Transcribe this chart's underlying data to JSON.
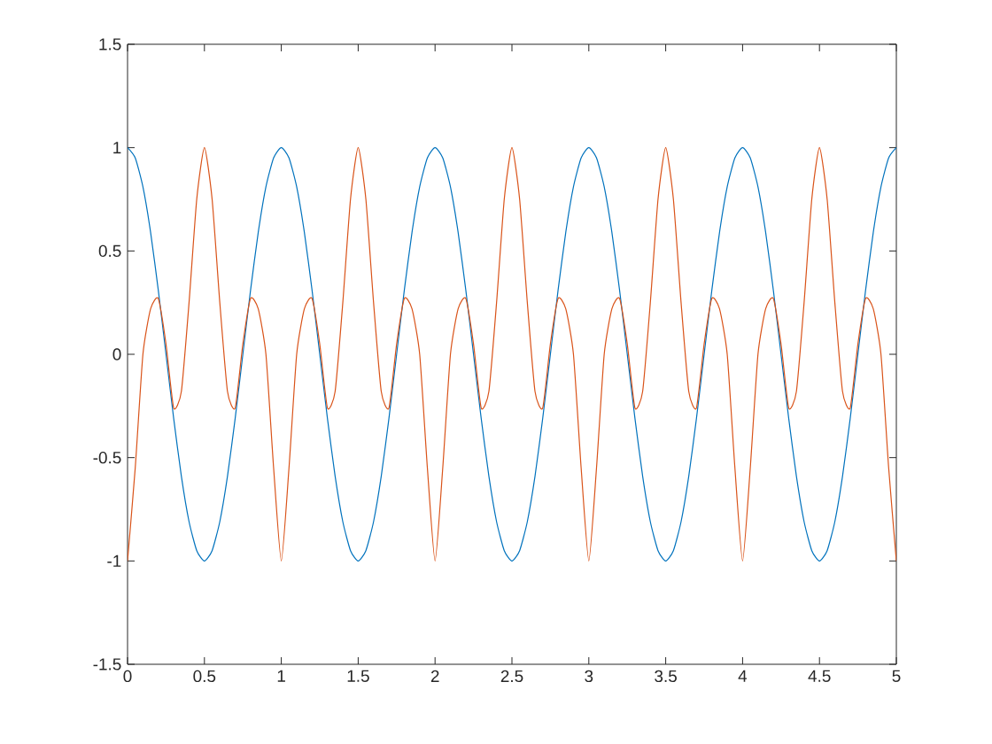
{
  "chart_data": {
    "type": "line",
    "x": [
      0,
      0.05,
      0.1,
      0.15,
      0.2,
      0.25,
      0.3,
      0.35,
      0.4,
      0.45,
      0.5,
      0.55,
      0.6,
      0.65,
      0.7,
      0.75,
      0.8,
      0.85,
      0.9,
      0.95,
      1,
      1.05,
      1.1,
      1.15,
      1.2,
      1.25,
      1.3,
      1.35,
      1.4,
      1.45,
      1.5,
      1.55,
      1.6,
      1.65,
      1.7,
      1.75,
      1.8,
      1.85,
      1.9,
      1.95,
      2,
      2.05,
      2.1,
      2.15,
      2.2,
      2.25,
      2.3,
      2.35,
      2.4,
      2.45,
      2.5,
      2.55,
      2.6,
      2.65,
      2.7,
      2.75,
      2.8,
      2.85,
      2.9,
      2.95,
      3,
      3.05,
      3.1,
      3.15,
      3.2,
      3.25,
      3.3,
      3.35,
      3.4,
      3.45,
      3.5,
      3.55,
      3.6,
      3.65,
      3.7,
      3.75,
      3.8,
      3.85,
      3.9,
      3.95,
      4,
      4.05,
      4.1,
      4.15,
      4.2,
      4.25,
      4.3,
      4.35,
      4.4,
      4.45,
      4.5,
      4.55,
      4.6,
      4.65,
      4.7,
      4.75,
      4.8,
      4.85,
      4.9,
      4.95,
      5
    ],
    "series": [
      {
        "color": "#0072bd",
        "values": [
          1,
          0.95,
          0.81,
          0.59,
          0.31,
          0,
          -0.31,
          -0.59,
          -0.81,
          -0.95,
          -1,
          -0.95,
          -0.81,
          -0.59,
          -0.31,
          0,
          0.31,
          0.59,
          0.81,
          0.95,
          1,
          0.95,
          0.81,
          0.59,
          0.31,
          0,
          -0.31,
          -0.59,
          -0.81,
          -0.95,
          -1,
          -0.95,
          -0.81,
          -0.59,
          -0.31,
          0,
          0.31,
          0.59,
          0.81,
          0.95,
          1,
          0.95,
          0.81,
          0.59,
          0.31,
          0,
          -0.31,
          -0.59,
          -0.81,
          -0.95,
          -1,
          -0.95,
          -0.81,
          -0.59,
          -0.31,
          0,
          0.31,
          0.59,
          0.81,
          0.95,
          1,
          0.95,
          0.81,
          0.59,
          0.31,
          0,
          -0.31,
          -0.59,
          -0.81,
          -0.95,
          -1,
          -0.95,
          -0.81,
          -0.59,
          -0.31,
          0,
          0.31,
          0.59,
          0.81,
          0.95,
          1,
          0.95,
          0.81,
          0.59,
          0.31,
          0,
          -0.31,
          -0.59,
          -0.81,
          -0.95,
          -1,
          -0.95,
          -0.81,
          -0.59,
          -0.31,
          0,
          0.31,
          0.59,
          0.81,
          0.95,
          1
        ]
      },
      {
        "color": "#d95319",
        "values": [
          -1,
          -0.55,
          0,
          0.22,
          0.27,
          0.05,
          -0.26,
          -0.18,
          0.25,
          0.75,
          1,
          0.75,
          0.25,
          -0.18,
          -0.26,
          0.05,
          0.27,
          0.22,
          0,
          -0.55,
          -1,
          -0.55,
          0,
          0.22,
          0.27,
          0.05,
          -0.26,
          -0.18,
          0.25,
          0.75,
          1,
          0.75,
          0.25,
          -0.18,
          -0.26,
          0.05,
          0.27,
          0.22,
          0,
          -0.55,
          -1,
          -0.55,
          0,
          0.22,
          0.27,
          0.05,
          -0.26,
          -0.18,
          0.25,
          0.75,
          1,
          0.75,
          0.25,
          -0.18,
          -0.26,
          0.05,
          0.27,
          0.22,
          0,
          -0.55,
          -1,
          -0.55,
          0,
          0.22,
          0.27,
          0.05,
          -0.26,
          -0.18,
          0.25,
          0.75,
          1,
          0.75,
          0.25,
          -0.18,
          -0.26,
          0.05,
          0.27,
          0.22,
          0,
          -0.55,
          -1,
          -0.55,
          0,
          0.22,
          0.27,
          0.05,
          -0.26,
          -0.18,
          0.25,
          0.75,
          1,
          0.75,
          0.25,
          -0.18,
          -0.26,
          0.05,
          0.27,
          0.22,
          0,
          -0.55,
          -1
        ]
      }
    ],
    "xlim": [
      0,
      5
    ],
    "xticks": [
      0,
      0.5,
      1,
      1.5,
      2,
      2.5,
      3,
      3.5,
      4,
      4.5,
      5
    ],
    "ylim": [
      -1.5,
      1.5
    ],
    "yticks": [
      -1.5,
      -1,
      -0.5,
      0,
      0.5,
      1,
      1.5
    ],
    "line_style": "solid",
    "marker": "none"
  }
}
